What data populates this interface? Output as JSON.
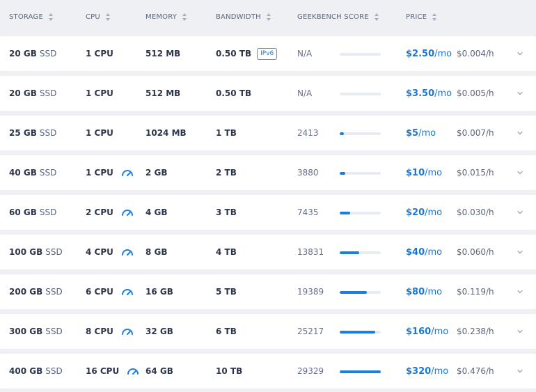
{
  "columns": {
    "storage": "STORAGE",
    "cpu": "CPU",
    "memory": "MEMORY",
    "bandwidth": "BANDWIDTH",
    "geekbench": "GEEKBENCH SCORE",
    "price": "PRICE"
  },
  "rows": [
    {
      "storage": "20 GB",
      "storage_type": "SSD",
      "cpu": "1 CPU",
      "cpu_icon": null,
      "memory": "512 MB",
      "bandwidth": "0.50 TB",
      "badge": "IPv6",
      "score": "N/A",
      "score_fraction": 0,
      "price": "$2.50",
      "period": "/mo",
      "hourly": "$0.004/h"
    },
    {
      "storage": "20 GB",
      "storage_type": "SSD",
      "cpu": "1 CPU",
      "cpu_icon": null,
      "memory": "512 MB",
      "bandwidth": "0.50 TB",
      "badge": null,
      "score": "N/A",
      "score_fraction": 0,
      "price": "$3.50",
      "period": "/mo",
      "hourly": "$0.005/h"
    },
    {
      "storage": "25 GB",
      "storage_type": "SSD",
      "cpu": "1 CPU",
      "cpu_icon": null,
      "memory": "1024 MB",
      "bandwidth": "1 TB",
      "badge": null,
      "score": "2413",
      "score_fraction": 0.08,
      "price": "$5",
      "period": "/mo",
      "hourly": "$0.007/h"
    },
    {
      "storage": "40 GB",
      "storage_type": "SSD",
      "cpu": "1 CPU",
      "cpu_icon": "speedometer-icon",
      "memory": "2 GB",
      "bandwidth": "2 TB",
      "badge": null,
      "score": "3880",
      "score_fraction": 0.13,
      "price": "$10",
      "period": "/mo",
      "hourly": "$0.015/h"
    },
    {
      "storage": "60 GB",
      "storage_type": "SSD",
      "cpu": "2 CPU",
      "cpu_icon": "speedometer-icon",
      "memory": "4 GB",
      "bandwidth": "3 TB",
      "badge": null,
      "score": "7435",
      "score_fraction": 0.25,
      "price": "$20",
      "period": "/mo",
      "hourly": "$0.030/h"
    },
    {
      "storage": "100 GB",
      "storage_type": "SSD",
      "cpu": "4 CPU",
      "cpu_icon": "speedometer-icon",
      "memory": "8 GB",
      "bandwidth": "4 TB",
      "badge": null,
      "score": "13831",
      "score_fraction": 0.47,
      "price": "$40",
      "period": "/mo",
      "hourly": "$0.060/h"
    },
    {
      "storage": "200 GB",
      "storage_type": "SSD",
      "cpu": "6 CPU",
      "cpu_icon": "speedometer-icon",
      "memory": "16 GB",
      "bandwidth": "5 TB",
      "badge": null,
      "score": "19389",
      "score_fraction": 0.66,
      "price": "$80",
      "period": "/mo",
      "hourly": "$0.119/h"
    },
    {
      "storage": "300 GB",
      "storage_type": "SSD",
      "cpu": "8 CPU",
      "cpu_icon": "speedometer-icon",
      "memory": "32 GB",
      "bandwidth": "6 TB",
      "badge": null,
      "score": "25217",
      "score_fraction": 0.86,
      "price": "$160",
      "period": "/mo",
      "hourly": "$0.238/h"
    },
    {
      "storage": "400 GB",
      "storage_type": "SSD",
      "cpu": "16 CPU",
      "cpu_icon": "speedometer-icon",
      "memory": "64 GB",
      "bandwidth": "10 TB",
      "badge": null,
      "score": "29329",
      "score_fraction": 1.0,
      "price": "$320",
      "period": "/mo",
      "hourly": "$0.476/h"
    }
  ],
  "colors": {
    "accent": "#1d7fdd",
    "bar_track": "#e7ebf2",
    "background": "#eef0f4"
  }
}
